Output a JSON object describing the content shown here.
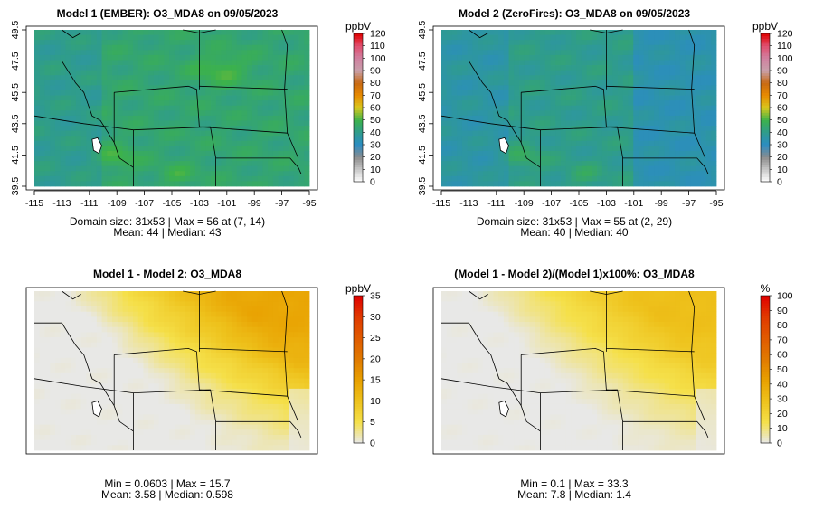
{
  "chart_data": [
    {
      "type": "heatmap",
      "title": "Model 1 (EMBER): O3_MDA8 on 09/05/2023",
      "xlabel": "",
      "ylabel": "",
      "x_ticks": [
        "-115",
        "-113",
        "-111",
        "-109",
        "-107",
        "-105",
        "-103",
        "-101",
        "-99",
        "-97",
        "-95"
      ],
      "y_ticks": [
        "39.5",
        "41.5",
        "43.5",
        "45.5",
        "47.5",
        "49.5"
      ],
      "xlim": [
        -115,
        -95
      ],
      "ylim": [
        39.5,
        49.5
      ],
      "legend_unit": "ppbV",
      "legend_ticks": [
        "0",
        "10",
        "20",
        "30",
        "40",
        "50",
        "60",
        "70",
        "80",
        "90",
        "100",
        "110",
        "120"
      ],
      "legend_range": [
        0,
        120
      ],
      "stats_line1": "Domain size: 31x53 | Max = 56 at (7, 14)",
      "stats_line2": "Mean: 44 |  Median: 43",
      "field": {
        "kind": "abs",
        "base": 44,
        "bump": 7,
        "min": 33,
        "max": 56
      }
    },
    {
      "type": "heatmap",
      "title": "Model 2 (ZeroFires): O3_MDA8 on 09/05/2023",
      "xlabel": "",
      "ylabel": "",
      "x_ticks": [
        "-115",
        "-113",
        "-111",
        "-109",
        "-107",
        "-105",
        "-103",
        "-101",
        "-99",
        "-97",
        "-95"
      ],
      "y_ticks": [
        "39.5",
        "41.5",
        "43.5",
        "45.5",
        "47.5",
        "49.5"
      ],
      "xlim": [
        -115,
        -95
      ],
      "ylim": [
        39.5,
        49.5
      ],
      "legend_unit": "ppbV",
      "legend_ticks": [
        "0",
        "10",
        "20",
        "30",
        "40",
        "50",
        "60",
        "70",
        "80",
        "90",
        "100",
        "110",
        "120"
      ],
      "legend_range": [
        0,
        120
      ],
      "stats_line1": "Domain size: 31x53 | Max = 55 at (2, 29)",
      "stats_line2": "Mean: 40 |  Median: 40",
      "field": {
        "kind": "abs",
        "base": 40,
        "bump": 2,
        "min": 32,
        "max": 55
      }
    },
    {
      "type": "heatmap",
      "title": "Model 1 - Model 2: O3_MDA8",
      "legend_unit": "ppbV",
      "legend_ticks": [
        "0",
        "5",
        "10",
        "15",
        "20",
        "25",
        "30",
        "35"
      ],
      "legend_range": [
        0,
        35
      ],
      "stats_line1": "Min = 0.0603 | Max = 15.7",
      "stats_line2": "Mean: 3.58 |  Median: 0.598",
      "field": {
        "kind": "diff",
        "max": 15.7,
        "min": 0.0603
      }
    },
    {
      "type": "heatmap",
      "title": "(Model 1 - Model 2)/(Model 1)x100%: O3_MDA8",
      "legend_unit": "%",
      "legend_ticks": [
        "0",
        "10",
        "20",
        "30",
        "40",
        "50",
        "60",
        "70",
        "80",
        "90",
        "100"
      ],
      "legend_range": [
        0,
        100
      ],
      "stats_line1": "Min = 0.1 | Max = 33.3",
      "stats_line2": "Mean: 7.8 |  Median: 1.4",
      "field": {
        "kind": "diff",
        "max": 33.3,
        "min": 0.1
      }
    }
  ],
  "colors": {
    "abs_scale": [
      "#FFFFFF",
      "#C8C8C8",
      "#8C8C8C",
      "#2B8CC4",
      "#2F9C8C",
      "#3CB24A",
      "#D8C81E",
      "#E88A00",
      "#C86A14",
      "#C8A0AA",
      "#D080A0",
      "#E05070",
      "#E00000"
    ],
    "diff_scale": [
      "#E8E8E8",
      "#F5E04A",
      "#EEC21C",
      "#E8A000",
      "#E07A00",
      "#E05A00",
      "#E03A00",
      "#E00000"
    ]
  }
}
